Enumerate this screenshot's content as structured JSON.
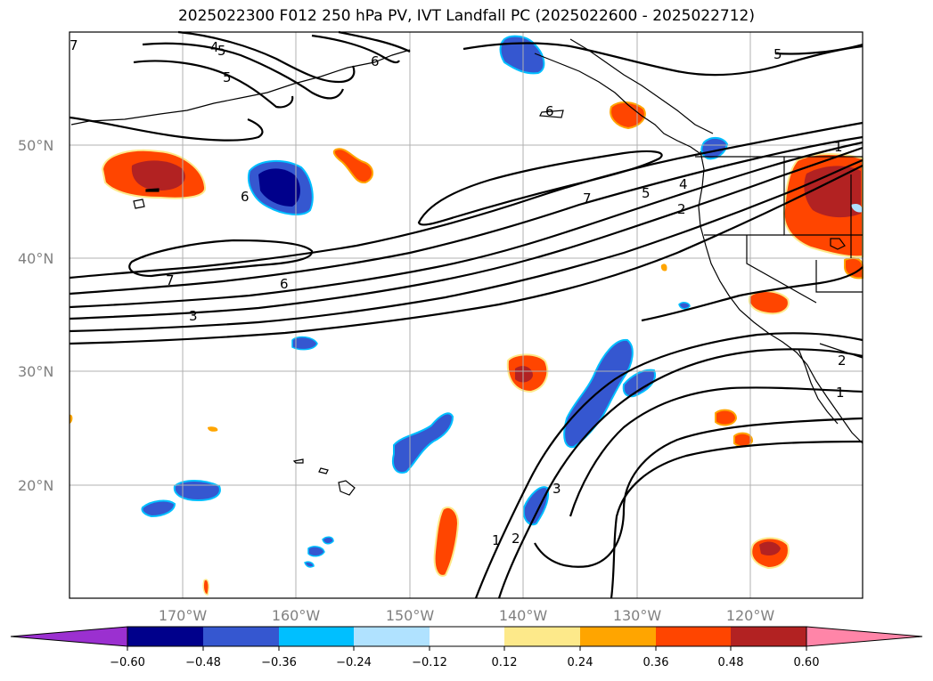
{
  "title": "2025022300 F012 250 hPa PV, IVT Landfall PC (2025022600 - 2025022712)",
  "axes": {
    "lat_labels": [
      "50°N",
      "40°N",
      "30°N",
      "20°N"
    ],
    "lon_labels": [
      "170°W",
      "160°W",
      "150°W",
      "140°W",
      "130°W",
      "120°W"
    ],
    "gridline_color": "#b0b0b0"
  },
  "contour_labels": [
    "5",
    "4",
    "6",
    "6",
    "5",
    "6",
    "7",
    "1",
    "7",
    "5",
    "4",
    "2",
    "7",
    "6",
    "3",
    "1",
    "2",
    "3",
    "1",
    "2"
  ],
  "colorbar": {
    "tick_labels": [
      "−0.60",
      "−0.48",
      "−0.36",
      "−0.24",
      "−0.12",
      "0.12",
      "0.24",
      "0.36",
      "0.48",
      "0.60"
    ],
    "colors": [
      "#9b30d0",
      "#00008b",
      "#3557d0",
      "#00bfff",
      "#b0e2ff",
      "#ffffff",
      "#fde98a",
      "#ffa500",
      "#ff4500",
      "#b22222",
      "#ff85a8"
    ]
  }
}
